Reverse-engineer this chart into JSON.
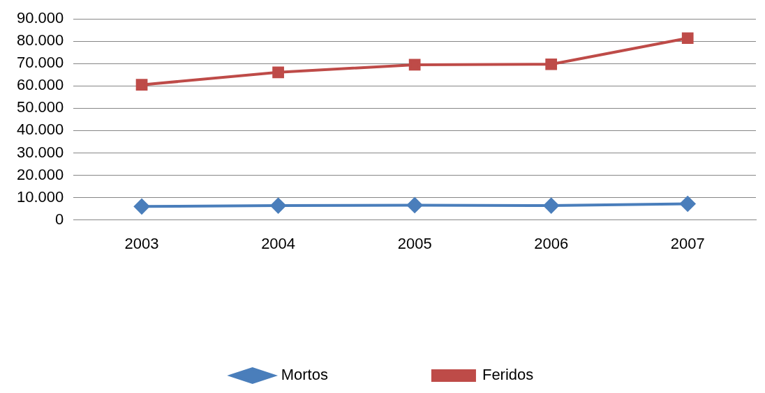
{
  "chart_data": {
    "type": "line",
    "categories": [
      "2003",
      "2004",
      "2005",
      "2006",
      "2007"
    ],
    "series": [
      {
        "name": "Mortos",
        "color": "#4a7ebb",
        "marker": "diamond",
        "values": [
          6000,
          6400,
          6600,
          6400,
          7200
        ]
      },
      {
        "name": "Feridos",
        "color": "#be4b48",
        "marker": "square",
        "values": [
          60500,
          66100,
          69500,
          69700,
          81400
        ]
      }
    ],
    "ylim": [
      0,
      90000
    ],
    "yticks": [
      {
        "value": 0,
        "label": "0"
      },
      {
        "value": 10000,
        "label": "10.000"
      },
      {
        "value": 20000,
        "label": "20.000"
      },
      {
        "value": 30000,
        "label": "30.000"
      },
      {
        "value": 40000,
        "label": "40.000"
      },
      {
        "value": 50000,
        "label": "50.000"
      },
      {
        "value": 60000,
        "label": "60.000"
      },
      {
        "value": 70000,
        "label": "70.000"
      },
      {
        "value": 80000,
        "label": "80.000"
      },
      {
        "value": 90000,
        "label": "90.000"
      }
    ],
    "grid": "y",
    "legend": "bottom",
    "line_style": "solid"
  }
}
